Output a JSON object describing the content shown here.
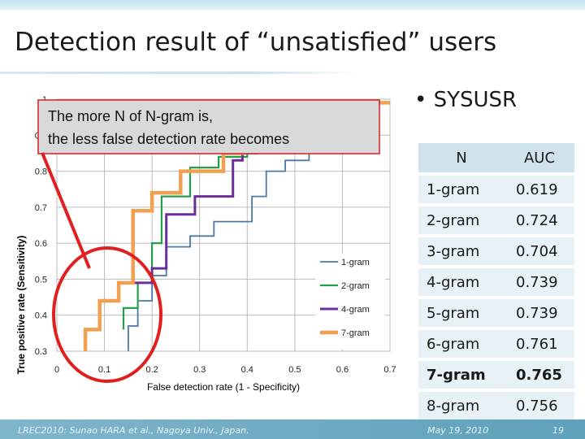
{
  "slide": {
    "title": "Detection result of “unsatisfied” users",
    "bullet": "SYSUSR",
    "footer_left": "LREC2010: Sunao HARA et al., Nagoya Univ., Japan.",
    "footer_date": "May 19, 2010",
    "page_number": "19"
  },
  "annotation": {
    "line1": "The more N of N-gram is,",
    "line2": "the less false detection rate becomes"
  },
  "table": {
    "headers": [
      "N",
      "AUC"
    ],
    "rows": [
      {
        "n": "1-gram",
        "auc": "0.619"
      },
      {
        "n": "2-gram",
        "auc": "0.724"
      },
      {
        "n": "3-gram",
        "auc": "0.704"
      },
      {
        "n": "4-gram",
        "auc": "0.739"
      },
      {
        "n": "5-gram",
        "auc": "0.739"
      },
      {
        "n": "6-gram",
        "auc": "0.761"
      },
      {
        "n": "7-gram",
        "auc": "0.765"
      },
      {
        "n": "8-gram",
        "auc": "0.756"
      }
    ],
    "bold_row": 6
  },
  "colors": {
    "1-gram": "#4a78a8",
    "2-gram": "#22a04a",
    "4-gram": "#6a2f9a",
    "7-gram": "#f0a050",
    "annotation_bg": "#d9d9d9",
    "annotation_border": "#d42020",
    "highlight": "#e02020"
  },
  "chart_data": {
    "type": "line",
    "title": "",
    "xlabel": "False detection rate (1 - Specificity)",
    "ylabel": "True positive rate (Sensitivity)",
    "xlim": [
      0,
      0.7
    ],
    "ylim": [
      0.3,
      1
    ],
    "xticks": [
      "0",
      "0.1",
      "0.2",
      "0.3",
      "0.4",
      "0.5",
      "0.6",
      "0.7"
    ],
    "yticks": [
      "0.3",
      "0.4",
      "0.5",
      "0.6",
      "0.7",
      "0.8",
      "0.9",
      "1"
    ],
    "grid": true,
    "legend_position": "right",
    "series": [
      {
        "name": "1-gram",
        "x": [
          0.15,
          0.15,
          0.17,
          0.17,
          0.2,
          0.2,
          0.23,
          0.23,
          0.28,
          0.28,
          0.33,
          0.33,
          0.41,
          0.41,
          0.44,
          0.44,
          0.48,
          0.48,
          0.53,
          0.53,
          0.59,
          0.59,
          0.63,
          0.63,
          0.65,
          0.65,
          0.7
        ],
        "y": [
          0.3,
          0.37,
          0.37,
          0.44,
          0.44,
          0.51,
          0.51,
          0.59,
          0.59,
          0.62,
          0.62,
          0.66,
          0.66,
          0.73,
          0.73,
          0.8,
          0.8,
          0.83,
          0.83,
          0.86,
          0.86,
          0.9,
          0.9,
          0.95,
          0.95,
          0.99,
          0.99
        ]
      },
      {
        "name": "2-gram",
        "x": [
          0.14,
          0.14,
          0.17,
          0.17,
          0.2,
          0.2,
          0.22,
          0.22,
          0.28,
          0.28,
          0.34,
          0.34,
          0.4,
          0.4,
          0.48,
          0.48,
          0.58,
          0.58,
          0.7
        ],
        "y": [
          0.36,
          0.42,
          0.42,
          0.49,
          0.49,
          0.6,
          0.6,
          0.73,
          0.73,
          0.81,
          0.81,
          0.84,
          0.84,
          0.9,
          0.9,
          0.95,
          0.95,
          0.99,
          0.99
        ]
      },
      {
        "name": "4-gram",
        "x": [
          0.09,
          0.09,
          0.13,
          0.13,
          0.2,
          0.2,
          0.23,
          0.23,
          0.29,
          0.29,
          0.37,
          0.37,
          0.39,
          0.39,
          0.42,
          0.42,
          0.47,
          0.47,
          0.53,
          0.53,
          0.56,
          0.56,
          0.7
        ],
        "y": [
          0.37,
          0.44,
          0.44,
          0.49,
          0.49,
          0.53,
          0.53,
          0.68,
          0.68,
          0.73,
          0.73,
          0.83,
          0.83,
          0.85,
          0.85,
          0.89,
          0.89,
          0.91,
          0.91,
          0.95,
          0.95,
          0.99,
          0.99
        ]
      },
      {
        "name": "7-gram",
        "x": [
          0.06,
          0.06,
          0.09,
          0.09,
          0.13,
          0.13,
          0.16,
          0.16,
          0.2,
          0.2,
          0.26,
          0.26,
          0.35,
          0.35,
          0.39,
          0.39,
          0.48,
          0.48,
          0.55,
          0.55,
          0.61,
          0.61,
          0.7
        ],
        "y": [
          0.3,
          0.36,
          0.36,
          0.44,
          0.44,
          0.49,
          0.49,
          0.69,
          0.69,
          0.74,
          0.74,
          0.8,
          0.8,
          0.85,
          0.85,
          0.87,
          0.87,
          0.9,
          0.9,
          0.95,
          0.95,
          0.99,
          0.99
        ]
      }
    ]
  }
}
